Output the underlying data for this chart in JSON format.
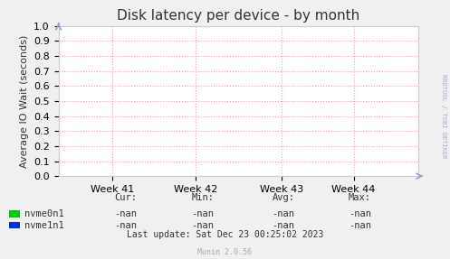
{
  "title": "Disk latency per device - by month",
  "ylabel": "Average IO Wait (seconds)",
  "background_color": "#f0f0f0",
  "plot_bg_color": "#ffffff",
  "grid_color": "#ff9999",
  "ylim": [
    0.0,
    1.0
  ],
  "yticks": [
    0.0,
    0.1,
    0.2,
    0.3,
    0.4,
    0.5,
    0.6,
    0.7,
    0.8,
    0.9,
    1.0
  ],
  "xtick_labels": [
    "Week 41",
    "Week 42",
    "Week 43",
    "Week 44"
  ],
  "xtick_positions": [
    0.15,
    0.38,
    0.62,
    0.82
  ],
  "legend_items": [
    {
      "label": "nvme0n1",
      "color": "#00cc00"
    },
    {
      "label": "nvme1n1",
      "color": "#0033cc"
    }
  ],
  "legend_col_headers": [
    "Cur:",
    "Min:",
    "Avg:",
    "Max:"
  ],
  "legend_values": [
    [
      "-nan",
      "-nan",
      "-nan",
      "-nan"
    ],
    [
      "-nan",
      "-nan",
      "-nan",
      "-nan"
    ]
  ],
  "footer_text": "Last update: Sat Dec 23 00:25:02 2023",
  "munin_text": "Munin 2.0.56",
  "rrdtool_text": "RRDTOOL / TOBI OETIKER",
  "title_fontsize": 11,
  "axis_fontsize": 8,
  "legend_fontsize": 7.5,
  "footer_fontsize": 7,
  "arrow_color": "#9999cc"
}
